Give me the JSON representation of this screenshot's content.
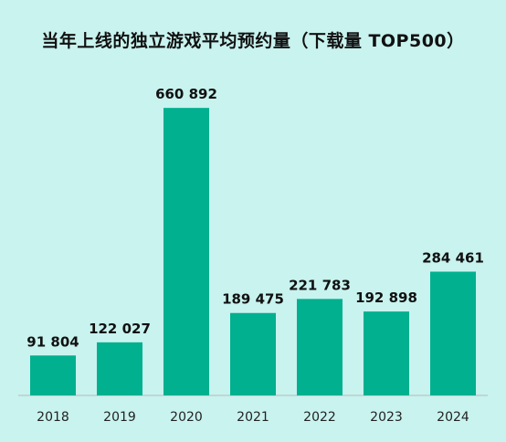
{
  "chart_data": {
    "type": "bar",
    "title": "当年上线的独立游戏平均预约量（下载量 TOP500）",
    "categories": [
      "2018",
      "2019",
      "2020",
      "2021",
      "2022",
      "2023",
      "2024"
    ],
    "values": [
      91804,
      122027,
      660892,
      189475,
      221783,
      192898,
      284461
    ],
    "value_labels": [
      "91 804",
      "122 027",
      "660 892",
      "189 475",
      "221 783",
      "192 898",
      "284 461"
    ],
    "xlabel": "",
    "ylabel": "",
    "ylim": [
      0,
      720000
    ],
    "grid": false,
    "colors": {
      "bar": "#00b08f",
      "background": "#c8f3ef"
    }
  }
}
